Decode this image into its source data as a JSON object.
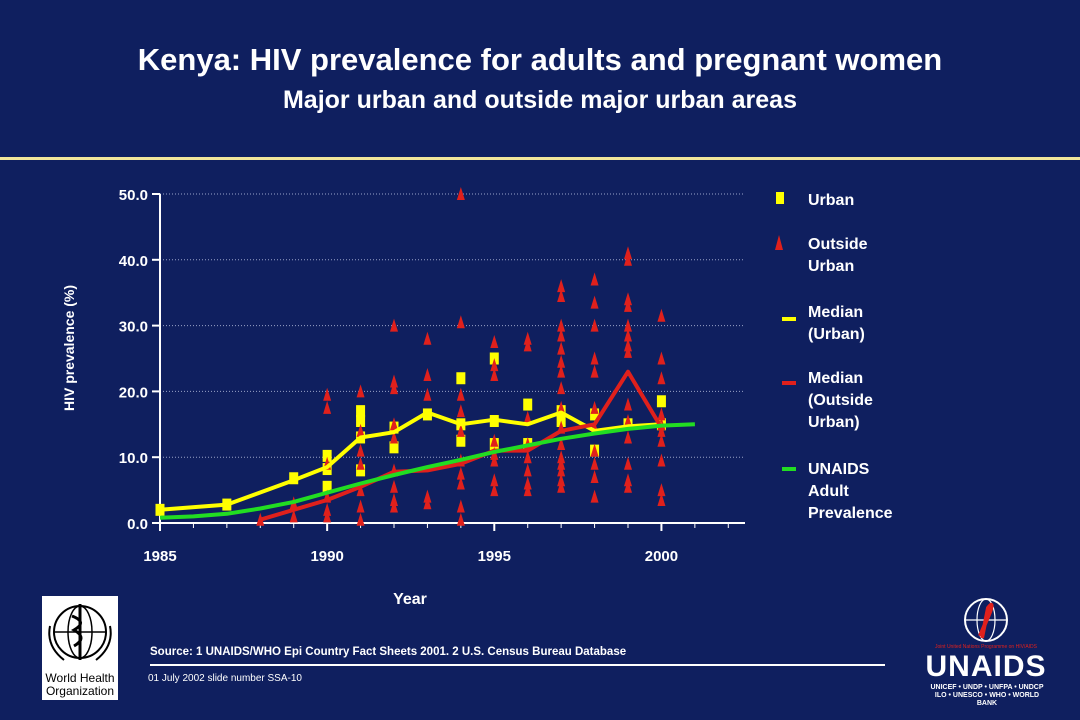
{
  "header": {
    "title": "Kenya: HIV prevalence for adults and pregnant women",
    "subtitle": "Major urban and outside major urban areas"
  },
  "chart_data": {
    "type": "scatter",
    "xlabel": "Year",
    "ylabel": "HIV prevalence (%)",
    "xlim": [
      1985,
      2002.5
    ],
    "ylim": [
      0,
      50
    ],
    "x_ticks": [
      "1985",
      "1990",
      "1995",
      "2000"
    ],
    "y_ticks": [
      "0.0",
      "10.0",
      "20.0",
      "30.0",
      "40.0",
      "50.0"
    ],
    "grid": "horizontal dotted",
    "legend_placement": "right",
    "series": [
      {
        "name": "Urban",
        "marker": "square",
        "color": "#ffff00",
        "points": [
          [
            1985,
            2.0
          ],
          [
            1987,
            2.8
          ],
          [
            1989,
            6.8
          ],
          [
            1990,
            10.2
          ],
          [
            1990,
            8.2
          ],
          [
            1990,
            5.5
          ],
          [
            1991,
            17.0
          ],
          [
            1991,
            15.5
          ],
          [
            1991,
            13.0
          ],
          [
            1991,
            8.0
          ],
          [
            1992,
            14.5
          ],
          [
            1992,
            11.5
          ],
          [
            1993,
            16.5
          ],
          [
            1994,
            22.0
          ],
          [
            1994,
            15.0
          ],
          [
            1994,
            12.5
          ],
          [
            1995,
            25.0
          ],
          [
            1995,
            15.5
          ],
          [
            1995,
            12.0
          ],
          [
            1996,
            18.0
          ],
          [
            1996,
            12.0
          ],
          [
            1997,
            17.0
          ],
          [
            1997,
            15.5
          ],
          [
            1998,
            16.5
          ],
          [
            1998,
            11.0
          ],
          [
            1999,
            15.0
          ],
          [
            2000,
            18.5
          ],
          [
            2000,
            15.0
          ]
        ]
      },
      {
        "name": "Outside Urban",
        "marker": "triangle",
        "color": "#e0201c",
        "points": [
          [
            1988,
            0.5
          ],
          [
            1989,
            3.0
          ],
          [
            1989,
            1.0
          ],
          [
            1990,
            19.5
          ],
          [
            1990,
            17.5
          ],
          [
            1990,
            9.0
          ],
          [
            1990,
            4.0
          ],
          [
            1990,
            2.0
          ],
          [
            1990,
            1.0
          ],
          [
            1991,
            20.0
          ],
          [
            1991,
            14.0
          ],
          [
            1991,
            11.0
          ],
          [
            1991,
            9.0
          ],
          [
            1991,
            5.0
          ],
          [
            1991,
            2.5
          ],
          [
            1991,
            0.5
          ],
          [
            1992,
            30.0
          ],
          [
            1992,
            21.5
          ],
          [
            1992,
            20.5
          ],
          [
            1992,
            15.0
          ],
          [
            1992,
            13.0
          ],
          [
            1992,
            8.0
          ],
          [
            1992,
            5.5
          ],
          [
            1992,
            3.5
          ],
          [
            1992,
            2.5
          ],
          [
            1993,
            28.0
          ],
          [
            1993,
            22.5
          ],
          [
            1993,
            19.5
          ],
          [
            1993,
            4.0
          ],
          [
            1993,
            3.0
          ],
          [
            1994,
            50.0
          ],
          [
            1994,
            30.5
          ],
          [
            1994,
            19.5
          ],
          [
            1994,
            17.0
          ],
          [
            1994,
            14.0
          ],
          [
            1994,
            9.5
          ],
          [
            1994,
            7.5
          ],
          [
            1994,
            6.0
          ],
          [
            1994,
            2.5
          ],
          [
            1994,
            0.5
          ],
          [
            1995,
            27.5
          ],
          [
            1995,
            24.0
          ],
          [
            1995,
            22.5
          ],
          [
            1995,
            12.5
          ],
          [
            1995,
            10.5
          ],
          [
            1995,
            9.5
          ],
          [
            1995,
            6.5
          ],
          [
            1995,
            5.0
          ],
          [
            1996,
            28.0
          ],
          [
            1996,
            27.0
          ],
          [
            1996,
            16.0
          ],
          [
            1996,
            12.0
          ],
          [
            1996,
            10.0
          ],
          [
            1996,
            8.0
          ],
          [
            1996,
            6.0
          ],
          [
            1996,
            5.0
          ],
          [
            1997,
            36.0
          ],
          [
            1997,
            34.5
          ],
          [
            1997,
            30.0
          ],
          [
            1997,
            28.5
          ],
          [
            1997,
            26.5
          ],
          [
            1997,
            24.5
          ],
          [
            1997,
            23.0
          ],
          [
            1997,
            20.5
          ],
          [
            1997,
            17.5
          ],
          [
            1997,
            14.5
          ],
          [
            1997,
            12.0
          ],
          [
            1997,
            10.0
          ],
          [
            1997,
            9.0
          ],
          [
            1997,
            8.0
          ],
          [
            1997,
            6.5
          ],
          [
            1997,
            5.5
          ],
          [
            1998,
            37.0
          ],
          [
            1998,
            33.5
          ],
          [
            1998,
            30.0
          ],
          [
            1998,
            25.0
          ],
          [
            1998,
            23.0
          ],
          [
            1998,
            17.5
          ],
          [
            1998,
            14.5
          ],
          [
            1998,
            11.0
          ],
          [
            1998,
            9.0
          ],
          [
            1998,
            7.0
          ],
          [
            1998,
            4.0
          ],
          [
            1999,
            41.0
          ],
          [
            1999,
            40.0
          ],
          [
            1999,
            34.0
          ],
          [
            1999,
            33.0
          ],
          [
            1999,
            30.0
          ],
          [
            1999,
            28.5
          ],
          [
            1999,
            27.0
          ],
          [
            1999,
            26.0
          ],
          [
            1999,
            18.0
          ],
          [
            1999,
            15.5
          ],
          [
            1999,
            13.0
          ],
          [
            1999,
            9.0
          ],
          [
            1999,
            6.5
          ],
          [
            1999,
            5.5
          ],
          [
            2000,
            31.5
          ],
          [
            2000,
            25.0
          ],
          [
            2000,
            22.0
          ],
          [
            2000,
            16.5
          ],
          [
            2000,
            15.0
          ],
          [
            2000,
            14.0
          ],
          [
            2000,
            12.5
          ],
          [
            2000,
            9.5
          ],
          [
            2000,
            5.0
          ],
          [
            2000,
            3.5
          ]
        ]
      },
      {
        "name": "Median (Urban)",
        "marker": "line",
        "color": "#ffff00",
        "x": [
          1985,
          1987,
          1989,
          1990,
          1991,
          1992,
          1993,
          1994,
          1995,
          1996,
          1997,
          1998,
          1999,
          2000
        ],
        "y": [
          2.0,
          2.8,
          6.5,
          8.5,
          13.0,
          13.8,
          16.8,
          15.0,
          15.7,
          15.0,
          16.8,
          14.0,
          14.7,
          15.0
        ]
      },
      {
        "name": "Median (Outside Urban)",
        "marker": "line",
        "color": "#e0201c",
        "x": [
          1988,
          1989,
          1990,
          1991,
          1992,
          1993,
          1994,
          1995,
          1996,
          1997,
          1998,
          1999,
          2000
        ],
        "y": [
          0.5,
          2.0,
          3.5,
          5.5,
          7.8,
          8.0,
          9.0,
          11.0,
          11.0,
          14.0,
          15.0,
          23.0,
          14.5
        ]
      },
      {
        "name": "UNAIDS Adult Prevalence",
        "marker": "line",
        "color": "#22dd22",
        "x": [
          1985,
          1986,
          1987,
          1988,
          1989,
          1990,
          1991,
          1992,
          1993,
          1994,
          1995,
          1996,
          1997,
          1998,
          1999,
          2000,
          2001
        ],
        "y": [
          0.8,
          1.0,
          1.4,
          2.2,
          3.2,
          4.6,
          6.0,
          7.3,
          8.5,
          9.6,
          10.8,
          11.8,
          12.8,
          13.6,
          14.3,
          14.8,
          15.0
        ]
      }
    ]
  },
  "legend": {
    "urban": "Urban",
    "outside_urban_1": "Outside",
    "outside_urban_2": "Urban",
    "median_urban_1": "Median",
    "median_urban_2": "(Urban)",
    "median_outside_1": "Median",
    "median_outside_2": "(Outside",
    "median_outside_3": "Urban)",
    "unaids_1": "UNAIDS",
    "unaids_2": "Adult",
    "unaids_3": "Prevalence"
  },
  "footer": {
    "source": "Source:  1 UNAIDS/WHO  Epi Country Fact Sheets 2001.  2 U.S. Census Bureau Database",
    "date_slide": "01 July 2002 slide number SSA-10",
    "who_name_1": "World Health",
    "who_name_2": "Organization",
    "unaids_word": "UNAIDS",
    "unaids_tagline": "Joint United Nations Programme on HIV/AIDS",
    "unaids_cosponsors_1": "UNICEF • UNDP • UNFPA • UNDCP",
    "unaids_cosponsors_2": "ILO • UNESCO • WHO • WORLD BANK"
  },
  "colors": {
    "background": "#0f1f5f",
    "urban": "#ffff00",
    "outside_urban": "#e0201c",
    "unaids_line": "#22dd22",
    "divider": "#f2e69a"
  }
}
